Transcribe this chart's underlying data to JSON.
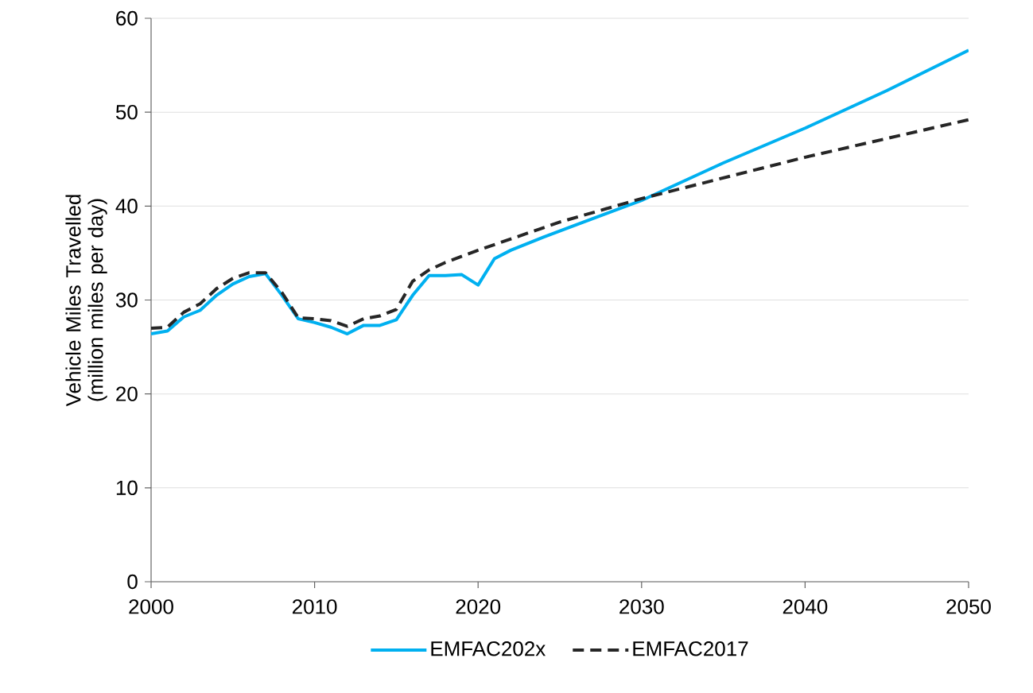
{
  "chart_data": {
    "type": "line",
    "ylabel": "Vehicle Miles Travelled (million miles per day)",
    "xlim": [
      2000,
      2050
    ],
    "xticks": [
      2000,
      2010,
      2020,
      2030,
      2040,
      2050
    ],
    "ylim": [
      0,
      60
    ],
    "yticks": [
      0,
      10,
      20,
      30,
      40,
      50,
      60
    ],
    "grid": "y",
    "legend": "bottom",
    "series": [
      {
        "name": "EMFAC202x",
        "color": "#00b0f0",
        "line_style": "solid",
        "x": [
          2000,
          2001,
          2002,
          2003,
          2004,
          2005,
          2006,
          2007,
          2008,
          2009,
          2010,
          2011,
          2012,
          2013,
          2014,
          2015,
          2016,
          2017,
          2018,
          2019,
          2020,
          2021,
          2022,
          2024,
          2026,
          2030,
          2035,
          2040,
          2045,
          2050
        ],
        "values": [
          26.4,
          26.7,
          28.2,
          28.9,
          30.5,
          31.7,
          32.5,
          32.8,
          30.5,
          28.0,
          27.6,
          27.1,
          26.4,
          27.3,
          27.3,
          27.9,
          30.5,
          32.6,
          32.6,
          32.7,
          31.6,
          34.4,
          35.3,
          36.7,
          38.0,
          40.6,
          44.6,
          48.3,
          52.3,
          56.6
        ]
      },
      {
        "name": "EMFAC2017",
        "color": "#262626",
        "line_style": "dashed",
        "x": [
          2000,
          2001,
          2002,
          2003,
          2004,
          2005,
          2006,
          2007,
          2008,
          2009,
          2010,
          2011,
          2012,
          2013,
          2014,
          2015,
          2016,
          2017,
          2018,
          2020,
          2025,
          2030,
          2035,
          2040,
          2045,
          2050
        ],
        "values": [
          27.0,
          27.1,
          28.7,
          29.6,
          31.2,
          32.3,
          32.9,
          32.9,
          30.8,
          28.1,
          28.0,
          27.8,
          27.2,
          28.0,
          28.3,
          29.0,
          32.0,
          33.2,
          34.0,
          35.3,
          38.3,
          40.8,
          43.0,
          45.2,
          47.2,
          49.2
        ]
      }
    ]
  }
}
